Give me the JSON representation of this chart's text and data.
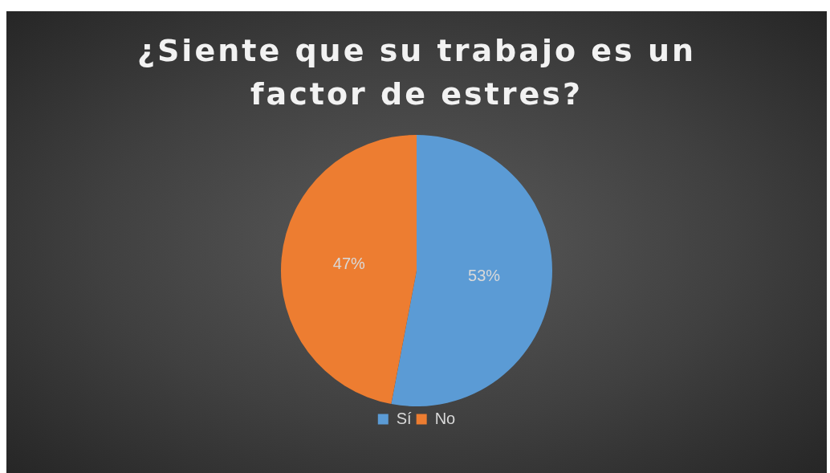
{
  "chart_data": {
    "type": "pie",
    "title": "¿Siente que su trabajo es un factor de estres?",
    "categories": [
      "Sí",
      "No"
    ],
    "values": [
      53,
      47
    ],
    "value_labels": [
      "53%",
      "47%"
    ],
    "colors": [
      "#5b9bd5",
      "#ed7d31"
    ],
    "legend": "bottom"
  }
}
